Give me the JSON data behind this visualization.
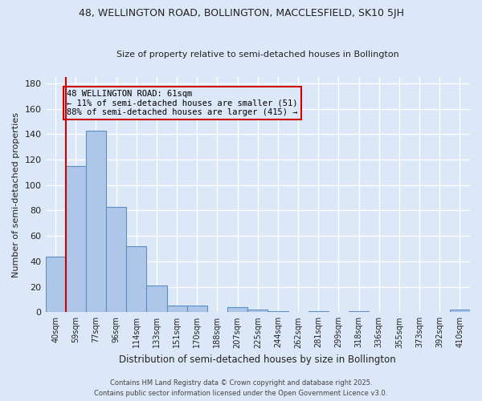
{
  "title1": "48, WELLINGTON ROAD, BOLLINGTON, MACCLESFIELD, SK10 5JH",
  "title2": "Size of property relative to semi-detached houses in Bollington",
  "xlabel": "Distribution of semi-detached houses by size in Bollington",
  "ylabel": "Number of semi-detached properties",
  "categories": [
    "40sqm",
    "59sqm",
    "77sqm",
    "96sqm",
    "114sqm",
    "133sqm",
    "151sqm",
    "170sqm",
    "188sqm",
    "207sqm",
    "225sqm",
    "244sqm",
    "262sqm",
    "281sqm",
    "299sqm",
    "318sqm",
    "336sqm",
    "355sqm",
    "373sqm",
    "392sqm",
    "410sqm"
  ],
  "values": [
    44,
    115,
    143,
    83,
    52,
    21,
    5,
    5,
    0,
    4,
    2,
    1,
    0,
    1,
    0,
    1,
    0,
    0,
    0,
    0,
    2
  ],
  "bar_color": "#aec6e8",
  "bar_edge_color": "#5a8fc2",
  "property_label": "48 WELLINGTON ROAD: 61sqm",
  "annotation_line1": "← 11% of semi-detached houses are smaller (51)",
  "annotation_line2": "88% of semi-detached houses are larger (415) →",
  "vline_x": 0.5,
  "vline_color": "#cc0000",
  "annotation_box_color": "#cc0000",
  "ylim": [
    0,
    185
  ],
  "yticks": [
    0,
    20,
    40,
    60,
    80,
    100,
    120,
    140,
    160,
    180
  ],
  "background_color": "#dce8f8",
  "grid_color": "#ffffff",
  "footer1": "Contains HM Land Registry data © Crown copyright and database right 2025.",
  "footer2": "Contains public sector information licensed under the Open Government Licence v3.0."
}
